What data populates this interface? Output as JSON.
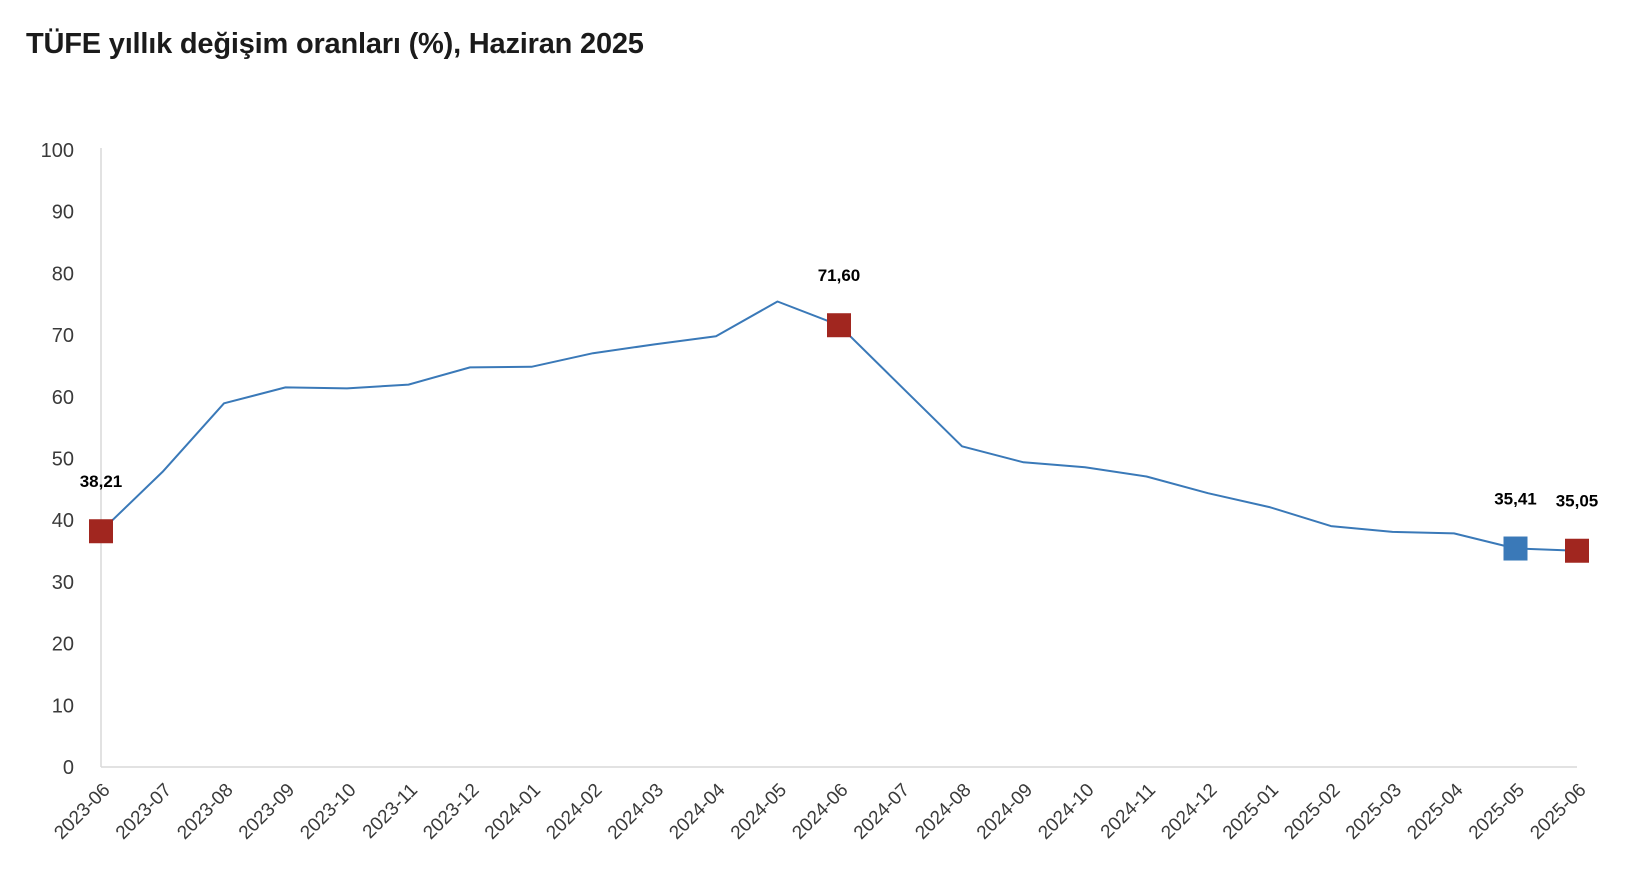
{
  "title": "TÜFE yıllık değişim oranları (%), Haziran 2025",
  "colors": {
    "line": "#3a79b8",
    "highlight_red": "#a1261f",
    "highlight_blue": "#3a79b8",
    "axis": "#d9d9d9"
  },
  "chart_data": {
    "type": "line",
    "title": "TÜFE yıllık değişim oranları (%), Haziran 2025",
    "xlabel": "",
    "ylabel": "",
    "ylim": [
      0,
      100
    ],
    "yticks": [
      "0",
      "10",
      "20",
      "30",
      "40",
      "50",
      "60",
      "70",
      "80",
      "90",
      "100"
    ],
    "grid": false,
    "categories": [
      "2023-06",
      "2023-07",
      "2023-08",
      "2023-09",
      "2023-10",
      "2023-11",
      "2023-12",
      "2024-01",
      "2024-02",
      "2024-03",
      "2024-04",
      "2024-05",
      "2024-06",
      "2024-07",
      "2024-08",
      "2024-09",
      "2024-10",
      "2024-11",
      "2024-12",
      "2025-01",
      "2025-02",
      "2025-03",
      "2025-04",
      "2025-05",
      "2025-06"
    ],
    "series": [
      {
        "values": [
          38.21,
          47.83,
          58.94,
          61.53,
          61.36,
          61.98,
          64.77,
          64.86,
          67.07,
          68.5,
          69.8,
          75.45,
          71.6,
          61.78,
          51.97,
          49.38,
          48.58,
          47.09,
          44.38,
          42.12,
          39.05,
          38.1,
          37.86,
          35.41,
          35.05
        ]
      }
    ],
    "highlights": [
      {
        "index": 0,
        "label": "38,21",
        "color": "red"
      },
      {
        "index": 12,
        "label": "71,60",
        "color": "red"
      },
      {
        "index": 23,
        "label": "35,41",
        "color": "blue"
      },
      {
        "index": 24,
        "label": "35,05",
        "color": "red"
      }
    ]
  }
}
